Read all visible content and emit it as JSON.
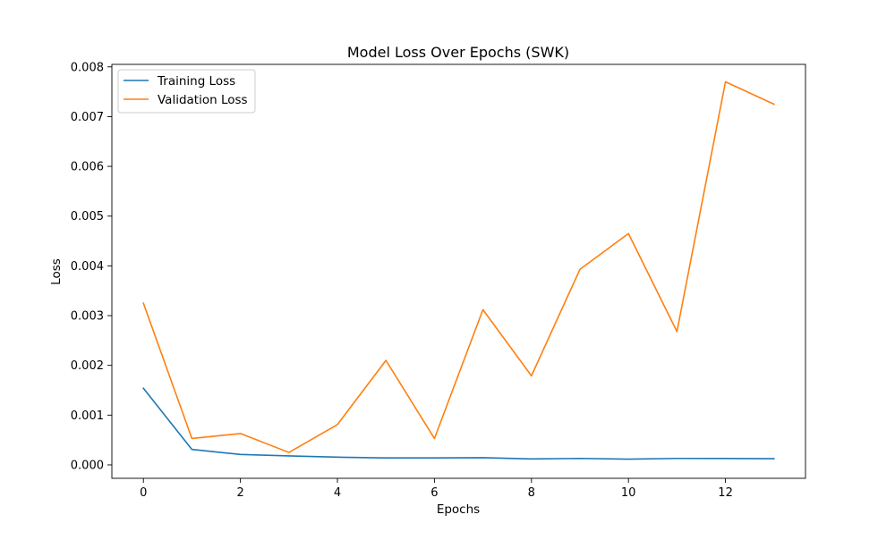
{
  "chart_data": {
    "type": "line",
    "title": "Model Loss Over Epochs (SWK)",
    "xlabel": "Epochs",
    "ylabel": "Loss",
    "x": [
      0,
      1,
      2,
      3,
      4,
      5,
      6,
      7,
      8,
      9,
      10,
      11,
      12,
      13
    ],
    "xlim": [
      -0.65,
      13.65
    ],
    "ylim": [
      -0.00027,
      0.00805
    ],
    "xticks": [
      0,
      2,
      4,
      6,
      8,
      10,
      12
    ],
    "xtick_labels": [
      "0",
      "2",
      "4",
      "6",
      "8",
      "10",
      "12"
    ],
    "yticks": [
      0,
      0.001,
      0.002,
      0.003,
      0.004,
      0.005,
      0.006,
      0.007,
      0.008
    ],
    "ytick_labels": [
      "0.000",
      "0.001",
      "0.002",
      "0.003",
      "0.004",
      "0.005",
      "0.006",
      "0.007",
      "0.008"
    ],
    "grid": false,
    "legend_position": "top-left",
    "series": [
      {
        "name": "Training Loss",
        "color": "#1f77b4",
        "values": [
          0.00154,
          0.00031,
          0.00021,
          0.00018,
          0.000155,
          0.00014,
          0.00014,
          0.000145,
          0.00012,
          0.00013,
          0.000115,
          0.00013,
          0.000128,
          0.000125
        ]
      },
      {
        "name": "Validation Loss",
        "color": "#ff7f0e",
        "values": [
          0.00325,
          0.00053,
          0.00063,
          0.00025,
          0.00081,
          0.0021,
          0.00053,
          0.00312,
          0.00179,
          0.00393,
          0.00465,
          0.00268,
          0.0077,
          0.00725
        ]
      }
    ]
  }
}
